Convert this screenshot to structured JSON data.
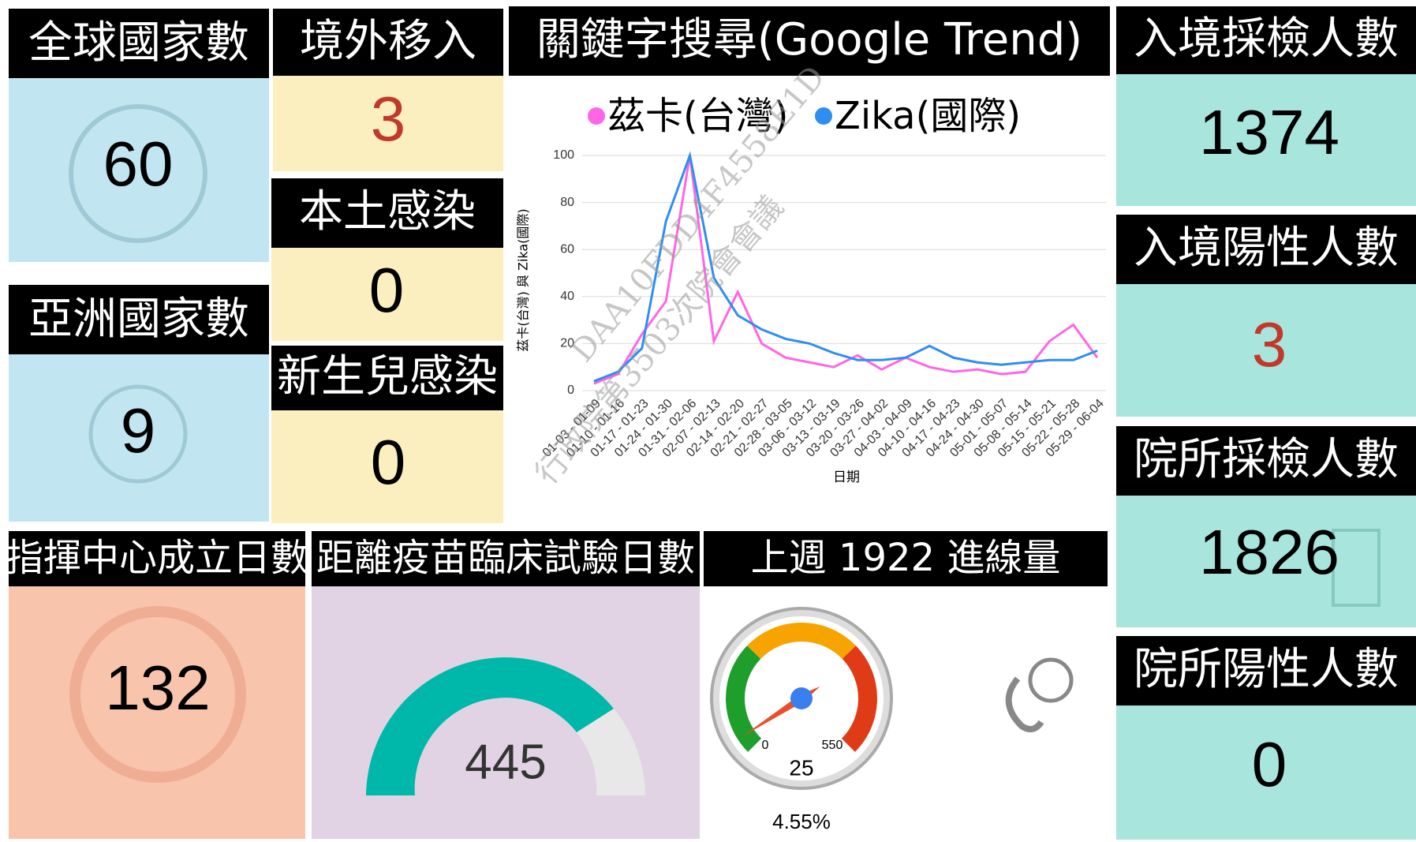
{
  "tiles": [
    {
      "title": "全球國家數",
      "value": "60"
    },
    {
      "title": "亞洲國家數",
      "value": "9"
    },
    {
      "title": "境外移入",
      "value": "3"
    },
    {
      "title": "本土感染",
      "value": "0"
    },
    {
      "title": "新生兒感染",
      "value": "0"
    },
    {
      "title": "入境採檢人數",
      "value": "1374"
    },
    {
      "title": "入境陽性人數",
      "value": "3"
    },
    {
      "title": "院所採檢人數",
      "value": "1826"
    },
    {
      "title": "院所陽性人數",
      "value": "0"
    },
    {
      "title": "指揮中心成立日數",
      "value": "132"
    },
    {
      "title": "距離疫苗臨床試驗日數",
      "value": "445"
    }
  ],
  "gauge": {
    "title": "上週 1922 進線量",
    "min": 0,
    "max": 550,
    "value": 25,
    "percent": "4.55%"
  },
  "watermark": [
    "DAA10FDD4F4558E1D",
    "行政院第3503次院會會議"
  ],
  "chart_data": {
    "type": "line",
    "title": "關鍵字搜尋(Google Trend)",
    "x_label": "日期",
    "y_label": "茲卡(台灣) 與 Zika(國際)",
    "categories": [
      "01-03 - 01-09",
      "01-10 - 01-16",
      "01-17 - 01-23",
      "01-24 - 01-30",
      "01-31 - 02-06",
      "02-07 - 02-13",
      "02-14 - 02-20",
      "02-21 - 02-27",
      "02-28 - 03-05",
      "03-06 - 03-12",
      "03-13 - 03-19",
      "03-20 - 03-26",
      "03-27 - 04-02",
      "04-03 - 04-09",
      "04-10 - 04-16",
      "04-17 - 04-23",
      "04-24 - 04-30",
      "05-01 - 05-07",
      "05-08 - 05-14",
      "05-15 - 05-21",
      "05-22 - 05-28",
      "05-29 - 06-04"
    ],
    "series": [
      {
        "name": "茲卡(台灣)",
        "color": "#ff66e6",
        "values": [
          3,
          7,
          24,
          38,
          100,
          21,
          42,
          20,
          14,
          12,
          10,
          15,
          9,
          14,
          10,
          8,
          9,
          7,
          8,
          21,
          28,
          14
        ]
      },
      {
        "name": "Zika(國際)",
        "color": "#2e8ff0",
        "values": [
          4,
          8,
          18,
          72,
          100,
          48,
          32,
          26,
          22,
          20,
          16,
          13,
          13,
          14,
          19,
          14,
          12,
          11,
          12,
          13,
          13,
          17
        ]
      }
    ],
    "ylim": [
      0,
      100
    ],
    "yticks": [
      0,
      20,
      40,
      60,
      80,
      100
    ],
    "grid": true
  }
}
